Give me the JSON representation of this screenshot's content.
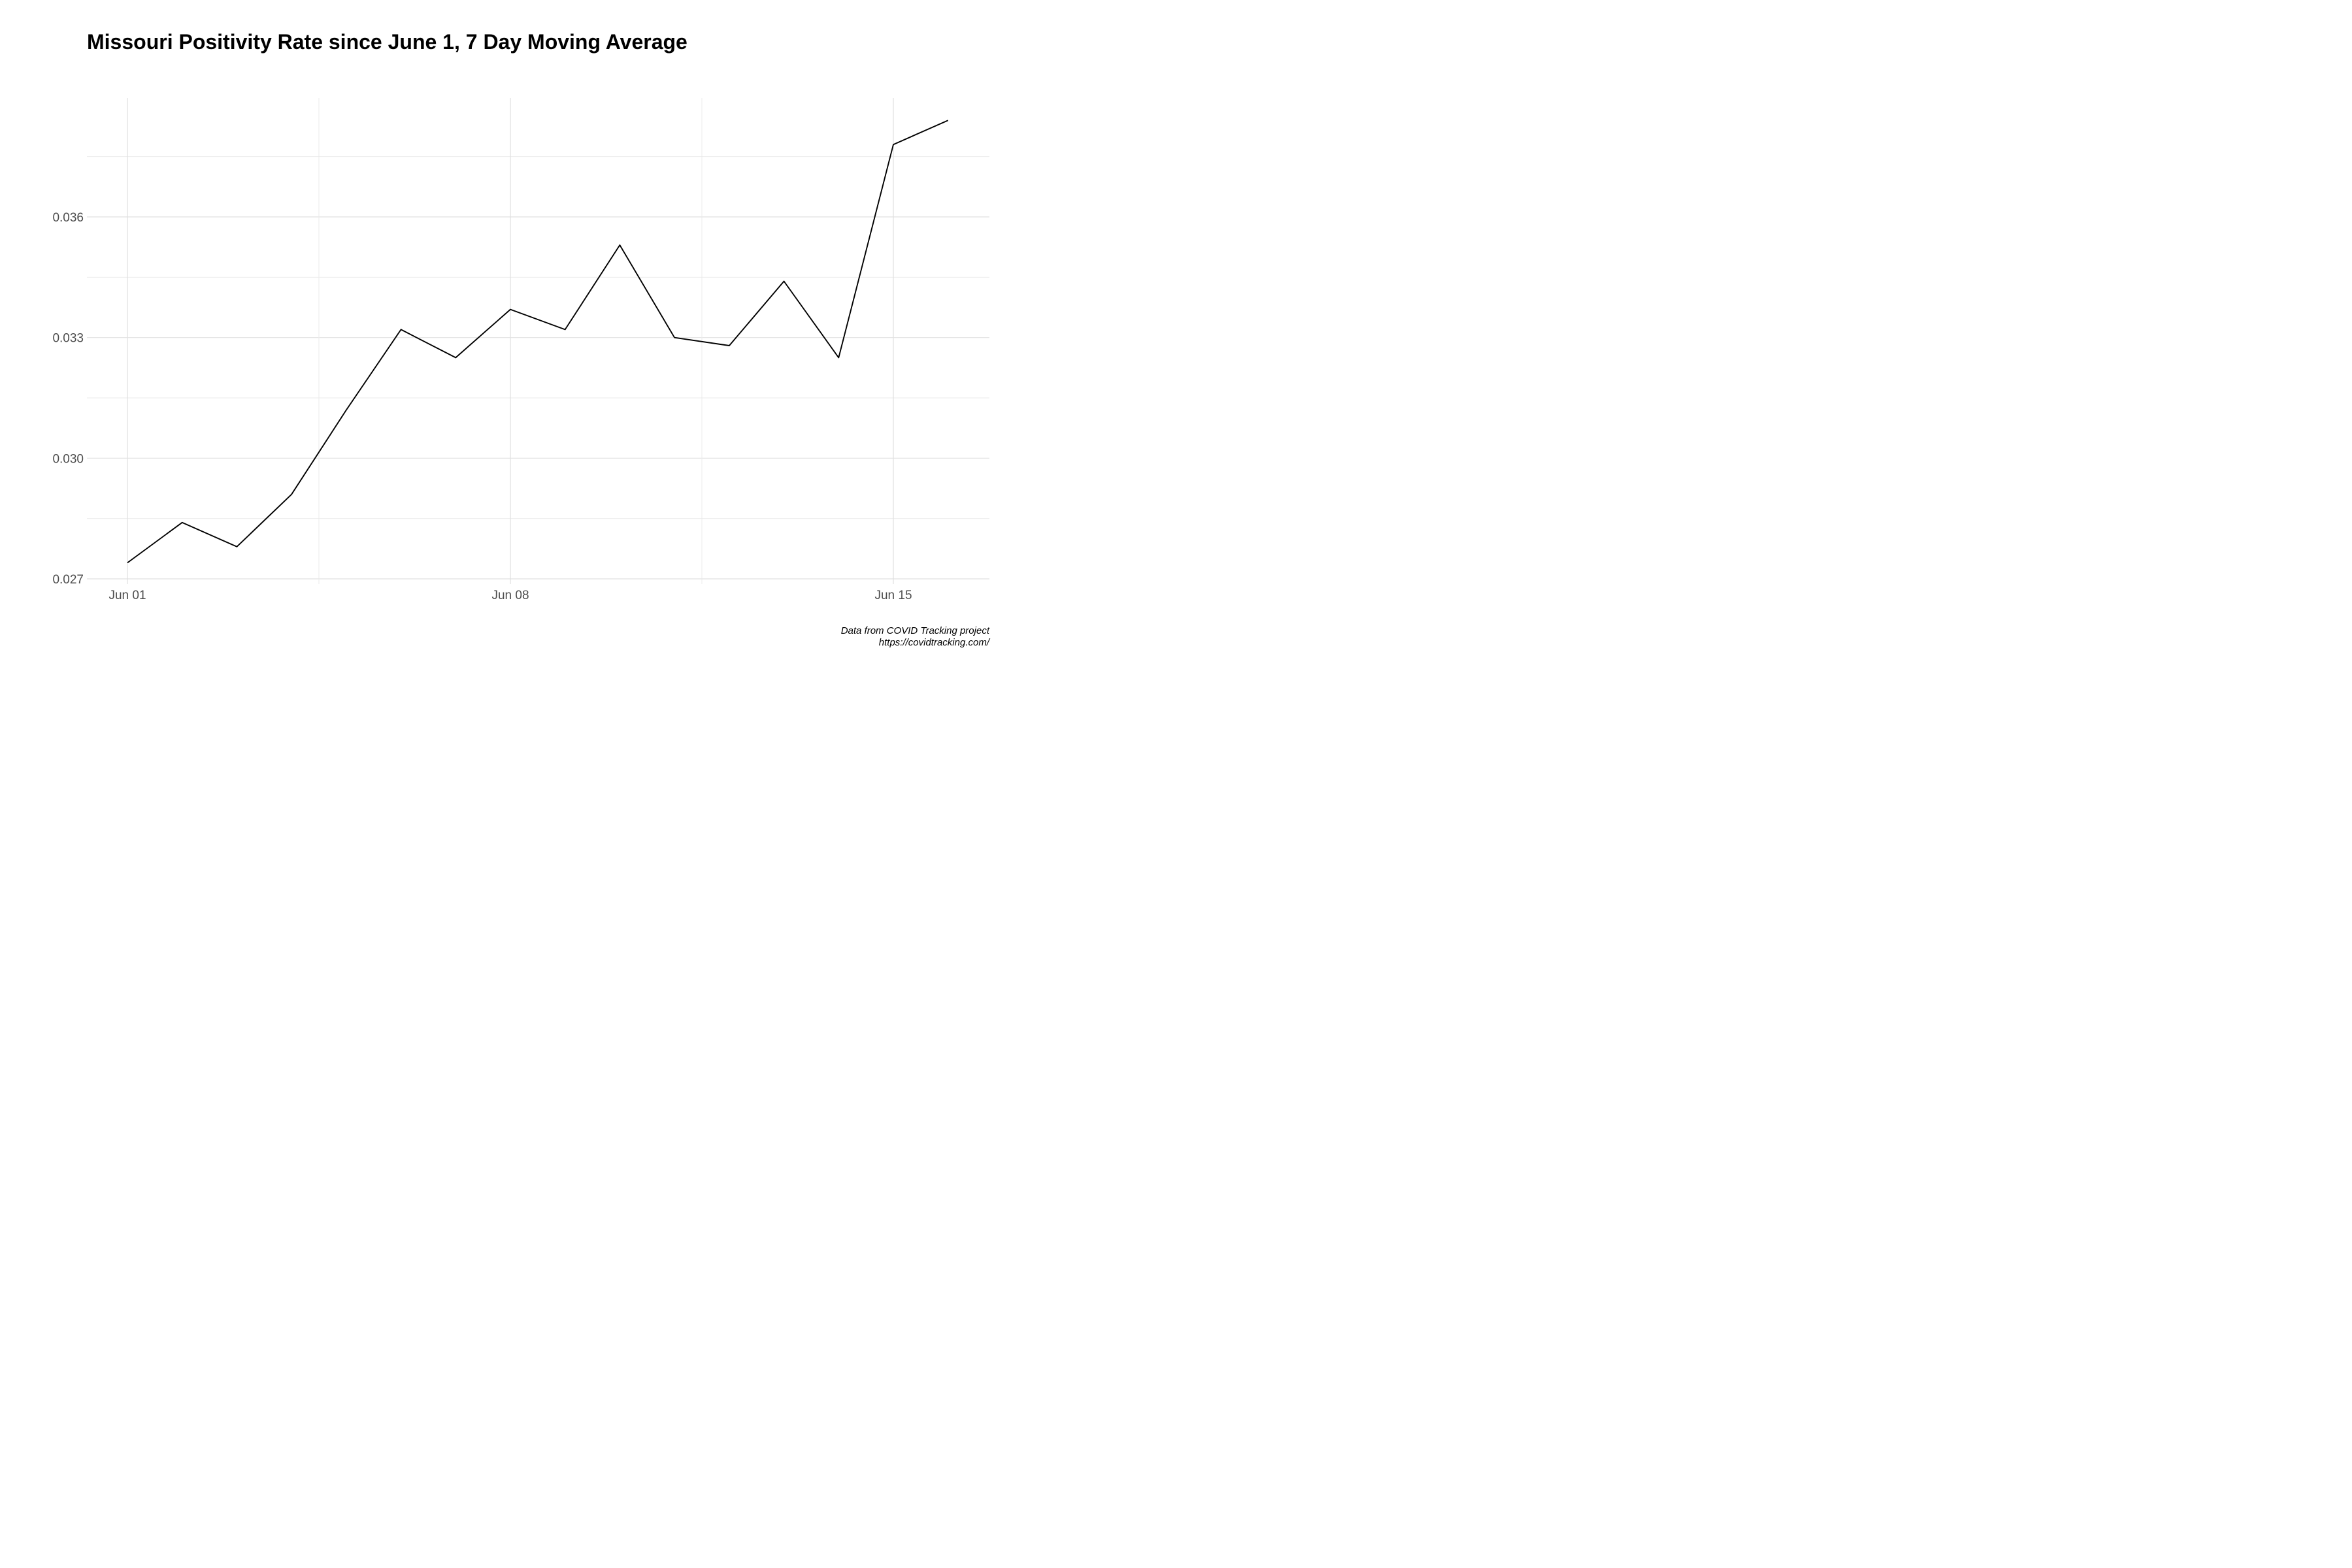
{
  "chart_data": {
    "type": "line",
    "title": "Missouri Positivity Rate since June 1, 7 Day Moving Average",
    "xlabel": "",
    "ylabel": "",
    "x": [
      "2020-06-01",
      "2020-06-02",
      "2020-06-03",
      "2020-06-04",
      "2020-06-05",
      "2020-06-06",
      "2020-06-07",
      "2020-06-08",
      "2020-06-09",
      "2020-06-10",
      "2020-06-11",
      "2020-06-12",
      "2020-06-13",
      "2020-06-14",
      "2020-06-15",
      "2020-06-16"
    ],
    "series": [
      {
        "values": [
          0.0274,
          0.0284,
          0.0278,
          0.0291,
          0.0312,
          0.0332,
          0.0325,
          0.0337,
          0.0332,
          0.0353,
          0.033,
          0.0328,
          0.0344,
          0.0325,
          0.0378,
          0.0384
        ],
        "color": "#000000"
      }
    ],
    "x_ticks": [
      "Jun 01",
      "Jun 08",
      "Jun 15"
    ],
    "y_ticks": [
      "0.027",
      "0.030",
      "0.033",
      "0.036"
    ],
    "y_tick_values": [
      0.027,
      0.03,
      0.033,
      0.036
    ],
    "ylim": [
      0.0268,
      0.039
    ],
    "grid": true,
    "legend": "none"
  },
  "caption": {
    "line1": "Data from COVID Tracking project",
    "line2": "https://covidtracking.com/"
  }
}
